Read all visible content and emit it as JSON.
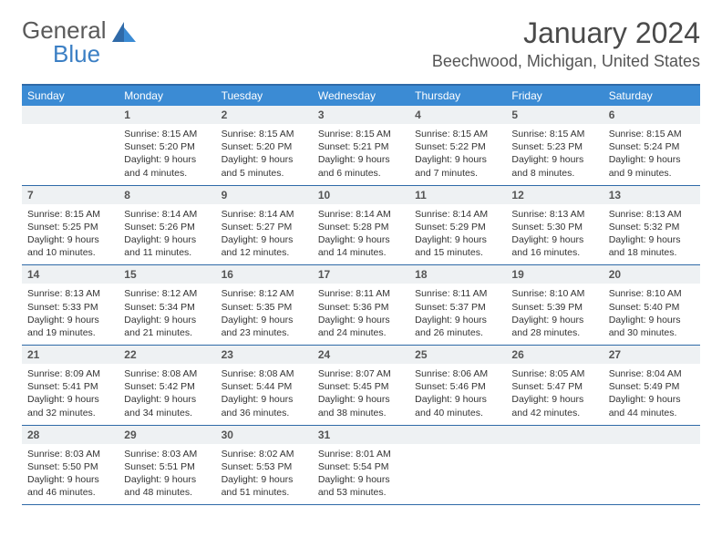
{
  "logo": {
    "text1": "General",
    "text2": "Blue"
  },
  "title": "January 2024",
  "location": "Beechwood, Michigan, United States",
  "colors": {
    "header_bg": "#3b8bd4",
    "border": "#2f6aa8",
    "daynum_bg": "#eef1f3",
    "logo_blue": "#3b7fc4"
  },
  "dow": [
    "Sunday",
    "Monday",
    "Tuesday",
    "Wednesday",
    "Thursday",
    "Friday",
    "Saturday"
  ],
  "weeks": [
    [
      {
        "n": "",
        "lines": []
      },
      {
        "n": "1",
        "lines": [
          "Sunrise: 8:15 AM",
          "Sunset: 5:20 PM",
          "Daylight: 9 hours",
          "and 4 minutes."
        ]
      },
      {
        "n": "2",
        "lines": [
          "Sunrise: 8:15 AM",
          "Sunset: 5:20 PM",
          "Daylight: 9 hours",
          "and 5 minutes."
        ]
      },
      {
        "n": "3",
        "lines": [
          "Sunrise: 8:15 AM",
          "Sunset: 5:21 PM",
          "Daylight: 9 hours",
          "and 6 minutes."
        ]
      },
      {
        "n": "4",
        "lines": [
          "Sunrise: 8:15 AM",
          "Sunset: 5:22 PM",
          "Daylight: 9 hours",
          "and 7 minutes."
        ]
      },
      {
        "n": "5",
        "lines": [
          "Sunrise: 8:15 AM",
          "Sunset: 5:23 PM",
          "Daylight: 9 hours",
          "and 8 minutes."
        ]
      },
      {
        "n": "6",
        "lines": [
          "Sunrise: 8:15 AM",
          "Sunset: 5:24 PM",
          "Daylight: 9 hours",
          "and 9 minutes."
        ]
      }
    ],
    [
      {
        "n": "7",
        "lines": [
          "Sunrise: 8:15 AM",
          "Sunset: 5:25 PM",
          "Daylight: 9 hours",
          "and 10 minutes."
        ]
      },
      {
        "n": "8",
        "lines": [
          "Sunrise: 8:14 AM",
          "Sunset: 5:26 PM",
          "Daylight: 9 hours",
          "and 11 minutes."
        ]
      },
      {
        "n": "9",
        "lines": [
          "Sunrise: 8:14 AM",
          "Sunset: 5:27 PM",
          "Daylight: 9 hours",
          "and 12 minutes."
        ]
      },
      {
        "n": "10",
        "lines": [
          "Sunrise: 8:14 AM",
          "Sunset: 5:28 PM",
          "Daylight: 9 hours",
          "and 14 minutes."
        ]
      },
      {
        "n": "11",
        "lines": [
          "Sunrise: 8:14 AM",
          "Sunset: 5:29 PM",
          "Daylight: 9 hours",
          "and 15 minutes."
        ]
      },
      {
        "n": "12",
        "lines": [
          "Sunrise: 8:13 AM",
          "Sunset: 5:30 PM",
          "Daylight: 9 hours",
          "and 16 minutes."
        ]
      },
      {
        "n": "13",
        "lines": [
          "Sunrise: 8:13 AM",
          "Sunset: 5:32 PM",
          "Daylight: 9 hours",
          "and 18 minutes."
        ]
      }
    ],
    [
      {
        "n": "14",
        "lines": [
          "Sunrise: 8:13 AM",
          "Sunset: 5:33 PM",
          "Daylight: 9 hours",
          "and 19 minutes."
        ]
      },
      {
        "n": "15",
        "lines": [
          "Sunrise: 8:12 AM",
          "Sunset: 5:34 PM",
          "Daylight: 9 hours",
          "and 21 minutes."
        ]
      },
      {
        "n": "16",
        "lines": [
          "Sunrise: 8:12 AM",
          "Sunset: 5:35 PM",
          "Daylight: 9 hours",
          "and 23 minutes."
        ]
      },
      {
        "n": "17",
        "lines": [
          "Sunrise: 8:11 AM",
          "Sunset: 5:36 PM",
          "Daylight: 9 hours",
          "and 24 minutes."
        ]
      },
      {
        "n": "18",
        "lines": [
          "Sunrise: 8:11 AM",
          "Sunset: 5:37 PM",
          "Daylight: 9 hours",
          "and 26 minutes."
        ]
      },
      {
        "n": "19",
        "lines": [
          "Sunrise: 8:10 AM",
          "Sunset: 5:39 PM",
          "Daylight: 9 hours",
          "and 28 minutes."
        ]
      },
      {
        "n": "20",
        "lines": [
          "Sunrise: 8:10 AM",
          "Sunset: 5:40 PM",
          "Daylight: 9 hours",
          "and 30 minutes."
        ]
      }
    ],
    [
      {
        "n": "21",
        "lines": [
          "Sunrise: 8:09 AM",
          "Sunset: 5:41 PM",
          "Daylight: 9 hours",
          "and 32 minutes."
        ]
      },
      {
        "n": "22",
        "lines": [
          "Sunrise: 8:08 AM",
          "Sunset: 5:42 PM",
          "Daylight: 9 hours",
          "and 34 minutes."
        ]
      },
      {
        "n": "23",
        "lines": [
          "Sunrise: 8:08 AM",
          "Sunset: 5:44 PM",
          "Daylight: 9 hours",
          "and 36 minutes."
        ]
      },
      {
        "n": "24",
        "lines": [
          "Sunrise: 8:07 AM",
          "Sunset: 5:45 PM",
          "Daylight: 9 hours",
          "and 38 minutes."
        ]
      },
      {
        "n": "25",
        "lines": [
          "Sunrise: 8:06 AM",
          "Sunset: 5:46 PM",
          "Daylight: 9 hours",
          "and 40 minutes."
        ]
      },
      {
        "n": "26",
        "lines": [
          "Sunrise: 8:05 AM",
          "Sunset: 5:47 PM",
          "Daylight: 9 hours",
          "and 42 minutes."
        ]
      },
      {
        "n": "27",
        "lines": [
          "Sunrise: 8:04 AM",
          "Sunset: 5:49 PM",
          "Daylight: 9 hours",
          "and 44 minutes."
        ]
      }
    ],
    [
      {
        "n": "28",
        "lines": [
          "Sunrise: 8:03 AM",
          "Sunset: 5:50 PM",
          "Daylight: 9 hours",
          "and 46 minutes."
        ]
      },
      {
        "n": "29",
        "lines": [
          "Sunrise: 8:03 AM",
          "Sunset: 5:51 PM",
          "Daylight: 9 hours",
          "and 48 minutes."
        ]
      },
      {
        "n": "30",
        "lines": [
          "Sunrise: 8:02 AM",
          "Sunset: 5:53 PM",
          "Daylight: 9 hours",
          "and 51 minutes."
        ]
      },
      {
        "n": "31",
        "lines": [
          "Sunrise: 8:01 AM",
          "Sunset: 5:54 PM",
          "Daylight: 9 hours",
          "and 53 minutes."
        ]
      },
      {
        "n": "",
        "lines": []
      },
      {
        "n": "",
        "lines": []
      },
      {
        "n": "",
        "lines": []
      }
    ]
  ]
}
